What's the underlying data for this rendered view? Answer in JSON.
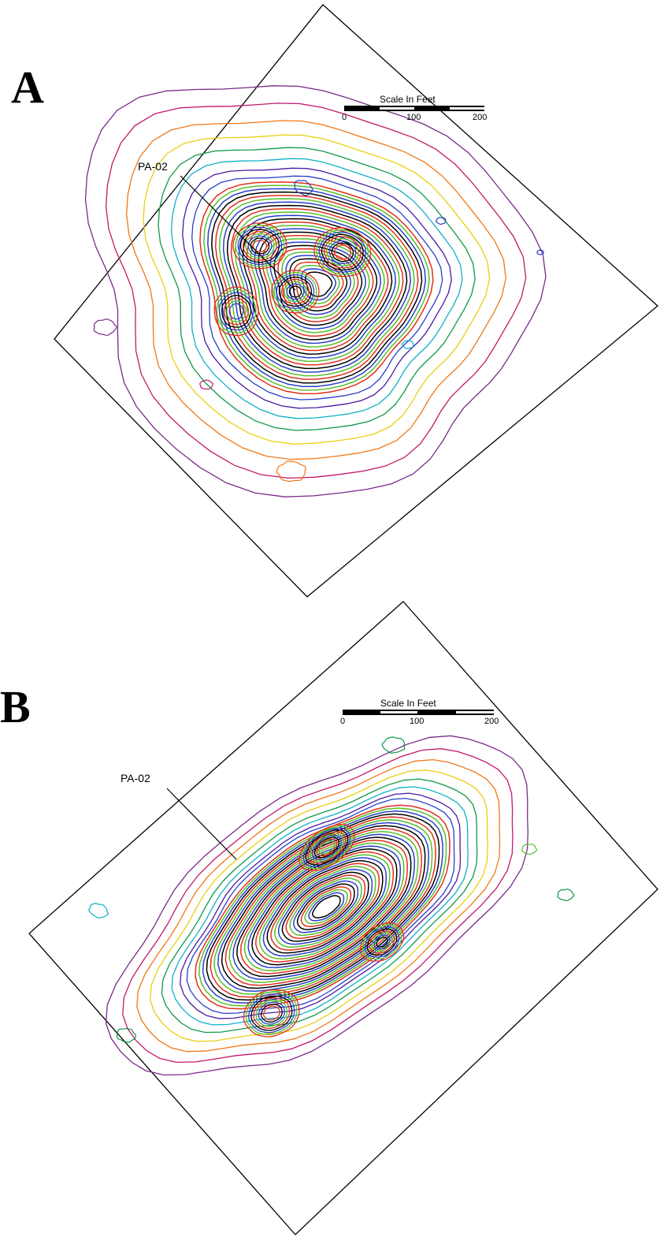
{
  "panels": [
    {
      "id": "A",
      "letter": "A",
      "well_label": "PA-02",
      "scale_bar": {
        "title": "Scale In Feet",
        "ticks": [
          "0",
          "100",
          "200"
        ]
      }
    },
    {
      "id": "B",
      "letter": "B",
      "well_label": "PA-02",
      "scale_bar": {
        "title": "Scale In Feet",
        "ticks": [
          "0",
          "100",
          "200"
        ]
      }
    }
  ],
  "contour_colors": [
    "#000000",
    "#7a2a8a",
    "#c2186a",
    "#e0301e",
    "#f07818",
    "#e8d010",
    "#58c028",
    "#109848",
    "#10b0c8",
    "#2840c8",
    "#4a1aa0"
  ]
}
